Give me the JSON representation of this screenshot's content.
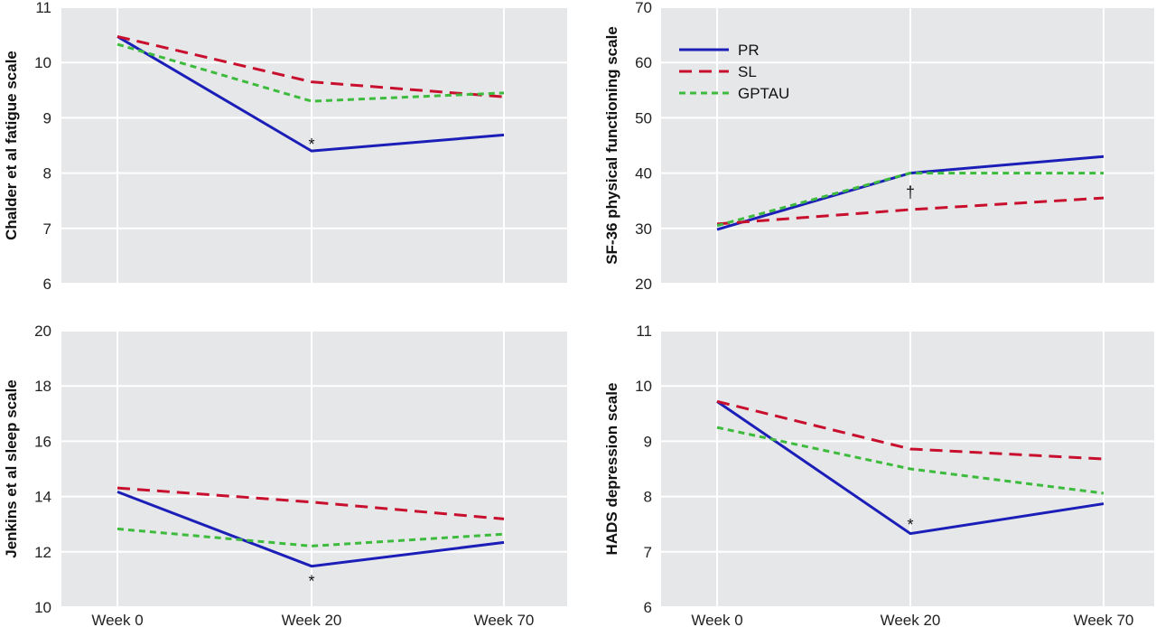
{
  "legend": {
    "placement": "top-left of top-right panel",
    "entries": [
      {
        "label": "PR",
        "color": "#1b1fb8",
        "dash": "solid"
      },
      {
        "label": "SL",
        "color": "#c8102e",
        "dash": "long-dash"
      },
      {
        "label": "GPTAU",
        "color": "#3dbb3d",
        "dash": "short-dash"
      }
    ]
  },
  "chart_data": [
    {
      "type": "line",
      "title": "",
      "xlabel": "",
      "ylabel": "Chalder et al fatigue scale",
      "categories": [
        "Week 0",
        "Week 20",
        "Week 70"
      ],
      "show_x_tick_labels": false,
      "ylim": [
        6,
        11
      ],
      "yticks": [
        6,
        7,
        8,
        9,
        10,
        11
      ],
      "grid": true,
      "series": [
        {
          "name": "PR",
          "values": [
            10.47,
            8.4,
            8.69
          ]
        },
        {
          "name": "SL",
          "values": [
            10.47,
            9.65,
            9.38
          ]
        },
        {
          "name": "GPTAU",
          "values": [
            10.33,
            9.3,
            9.45
          ]
        }
      ],
      "annotations": [
        {
          "text": "*",
          "x": "Week 20",
          "y": 8.55
        }
      ]
    },
    {
      "type": "line",
      "title": "",
      "xlabel": "",
      "ylabel": "SF-36 physical functioning scale",
      "categories": [
        "Week 0",
        "Week 20",
        "Week 70"
      ],
      "show_x_tick_labels": false,
      "ylim": [
        20,
        70
      ],
      "yticks": [
        20,
        30,
        40,
        50,
        60,
        70
      ],
      "grid": true,
      "series": [
        {
          "name": "PR",
          "values": [
            29.8,
            40.0,
            43.0
          ]
        },
        {
          "name": "SL",
          "values": [
            30.8,
            33.4,
            35.5
          ]
        },
        {
          "name": "GPTAU",
          "values": [
            30.5,
            40.0,
            40.0
          ]
        }
      ],
      "annotations": [
        {
          "text": "†",
          "x": "Week 20",
          "y": 36.8
        }
      ]
    },
    {
      "type": "line",
      "title": "",
      "xlabel": "",
      "ylabel": "Jenkins et al sleep scale",
      "categories": [
        "Week 0",
        "Week 20",
        "Week 70"
      ],
      "show_x_tick_labels": true,
      "ylim": [
        10,
        20
      ],
      "yticks": [
        10,
        12,
        14,
        16,
        18,
        20
      ],
      "grid": true,
      "series": [
        {
          "name": "PR",
          "values": [
            14.17,
            11.48,
            12.34
          ]
        },
        {
          "name": "SL",
          "values": [
            14.31,
            13.8,
            13.19
          ]
        },
        {
          "name": "GPTAU",
          "values": [
            12.83,
            12.21,
            12.64
          ]
        }
      ],
      "annotations": [
        {
          "text": "*",
          "x": "Week 20",
          "y": 11.0
        }
      ]
    },
    {
      "type": "line",
      "title": "",
      "xlabel": "",
      "ylabel": "HADS depression scale",
      "categories": [
        "Week 0",
        "Week 20",
        "Week 70"
      ],
      "show_x_tick_labels": true,
      "ylim": [
        6,
        11
      ],
      "yticks": [
        6,
        7,
        8,
        9,
        10,
        11
      ],
      "grid": true,
      "series": [
        {
          "name": "PR",
          "values": [
            9.72,
            7.33,
            7.87
          ]
        },
        {
          "name": "SL",
          "values": [
            9.72,
            8.86,
            8.68
          ]
        },
        {
          "name": "GPTAU",
          "values": [
            9.25,
            8.5,
            8.06
          ]
        }
      ],
      "annotations": [
        {
          "text": "*",
          "x": "Week 20",
          "y": 7.52
        }
      ]
    }
  ]
}
